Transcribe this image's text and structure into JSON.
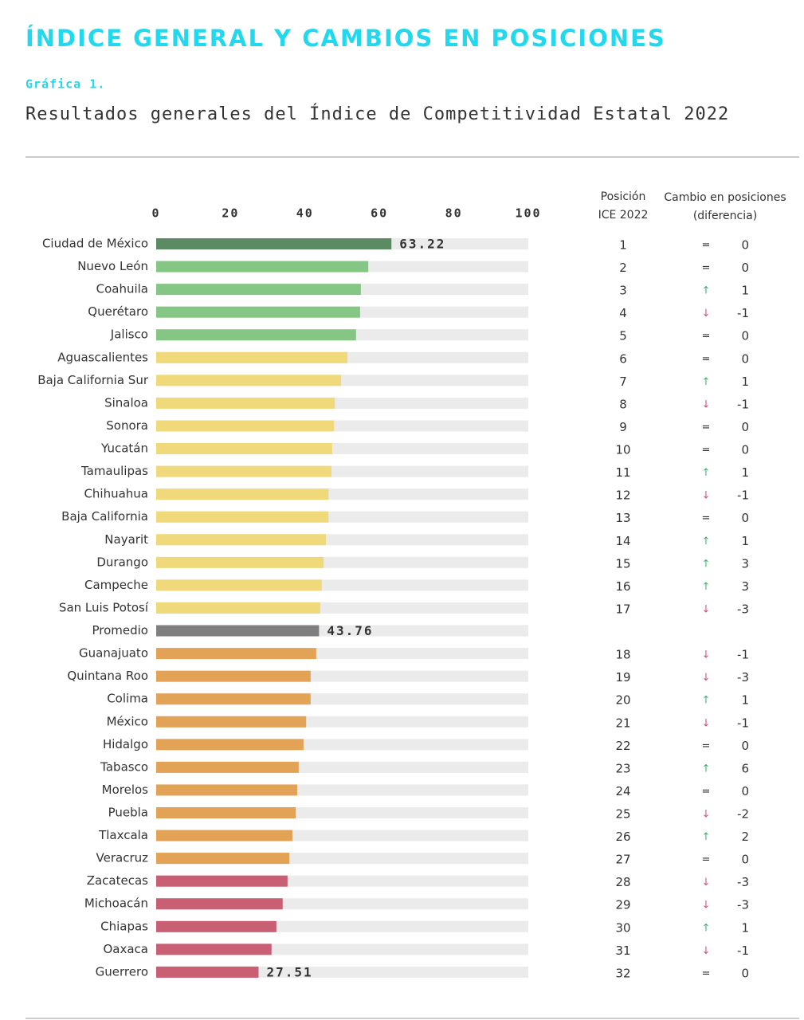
{
  "header": {
    "heading": "ÍNDICE GENERAL Y CAMBIOS EN POSICIONES",
    "label": "Gráfica 1.",
    "subtitle": "Resultados generales del Índice de Competitividad Estatal 2022"
  },
  "chart_data": {
    "type": "bar",
    "orientation": "horizontal",
    "categories": [
      "Ciudad de México",
      "Nuevo León",
      "Coahuila",
      "Querétaro",
      "Jalisco",
      "Aguascalientes",
      "Baja California Sur",
      "Sinaloa",
      "Sonora",
      "Yucatán",
      "Tamaulipas",
      "Chihuahua",
      "Baja California",
      "Nayarit",
      "Durango",
      "Campeche",
      "San Luis Potosí",
      "Promedio",
      "Guanajuato",
      "Quintana Roo",
      "Colima",
      "México",
      "Hidalgo",
      "Tabasco",
      "Morelos",
      "Puebla",
      "Tlaxcala",
      "Veracruz",
      "Zacatecas",
      "Michoacán",
      "Chiapas",
      "Oaxaca",
      "Guerrero"
    ],
    "values": [
      63.22,
      57.0,
      55.0,
      54.8,
      53.7,
      51.4,
      49.7,
      48.0,
      47.8,
      47.3,
      47.1,
      46.3,
      46.3,
      45.6,
      45.0,
      44.5,
      44.1,
      43.76,
      43.0,
      41.5,
      41.5,
      40.3,
      39.6,
      38.3,
      37.9,
      37.5,
      36.6,
      35.8,
      35.3,
      34.0,
      32.3,
      31.0,
      27.51
    ],
    "value_labels": [
      "63.22",
      null,
      null,
      null,
      null,
      null,
      null,
      null,
      null,
      null,
      null,
      null,
      null,
      null,
      null,
      null,
      null,
      "43.76",
      null,
      null,
      null,
      null,
      null,
      null,
      null,
      null,
      null,
      null,
      null,
      null,
      null,
      null,
      "27.51"
    ],
    "colors": [
      "#5b8a63",
      "#85c685",
      "#85c685",
      "#85c685",
      "#85c685",
      "#f0d97a",
      "#f0d97a",
      "#f0d97a",
      "#f0d97a",
      "#f0d97a",
      "#f0d97a",
      "#f0d97a",
      "#f0d97a",
      "#f0d97a",
      "#f0d97a",
      "#f0d97a",
      "#f0d97a",
      "#7f7f7f",
      "#e3a356",
      "#e3a356",
      "#e3a356",
      "#e3a356",
      "#e3a356",
      "#e3a356",
      "#e3a356",
      "#e3a356",
      "#e3a356",
      "#e3a356",
      "#c95f72",
      "#c95f72",
      "#c95f72",
      "#c95f72",
      "#c95f72"
    ],
    "xlim": [
      0,
      100
    ],
    "xticks": [
      0,
      20,
      40,
      60,
      80,
      100
    ],
    "position_header": [
      "Posición",
      "ICE 2022"
    ],
    "change_header": [
      "Cambio en posiciones",
      "(diferencia)"
    ],
    "positions": [
      1,
      2,
      3,
      4,
      5,
      6,
      7,
      8,
      9,
      10,
      11,
      12,
      13,
      14,
      15,
      16,
      17,
      null,
      18,
      19,
      20,
      21,
      22,
      23,
      24,
      25,
      26,
      27,
      28,
      29,
      30,
      31,
      32
    ],
    "change_symbols": [
      "=",
      "=",
      "↑",
      "↓",
      "=",
      "=",
      "↑",
      "↓",
      "=",
      "=",
      "↑",
      "↓",
      "=",
      "↑",
      "↑",
      "↑",
      "↓",
      null,
      "↓",
      "↓",
      "↑",
      "↓",
      "=",
      "↑",
      "=",
      "↓",
      "↑",
      "=",
      "↓",
      "↓",
      "↑",
      "↓",
      "="
    ],
    "changes": [
      0,
      0,
      1,
      -1,
      0,
      0,
      1,
      -1,
      0,
      0,
      1,
      -1,
      0,
      1,
      3,
      3,
      -3,
      null,
      -1,
      -3,
      1,
      -1,
      0,
      6,
      0,
      -2,
      2,
      0,
      -3,
      -3,
      1,
      -1,
      0
    ]
  }
}
